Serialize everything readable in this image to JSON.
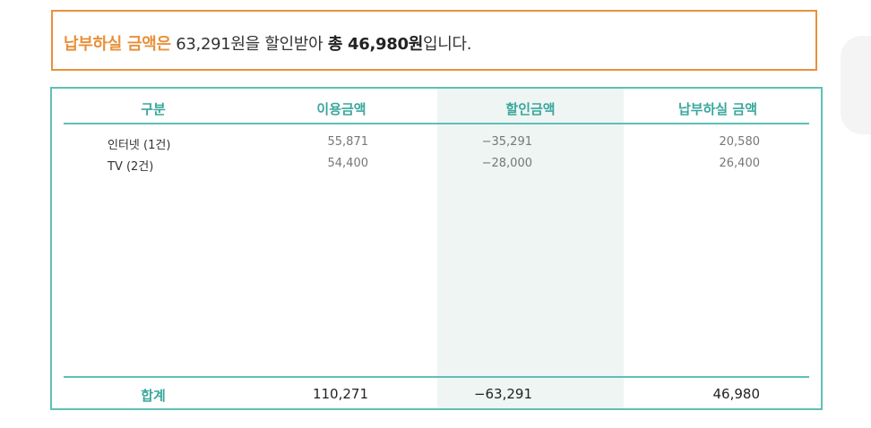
{
  "summary": {
    "lead": "납부하실 금액은",
    "middle": " 63,291원을 할인받아 ",
    "total_prefix": "총 ",
    "total_amount": "46,980원",
    "suffix": "입니다."
  },
  "table": {
    "headers": [
      "구분",
      "이용금액",
      "할인금액",
      "납부하실 금액"
    ],
    "rows": [
      {
        "category": "인터넷 (1건)",
        "usage": "55,871",
        "discount": "−35,291",
        "payment": "20,580"
      },
      {
        "category": "TV (2건)",
        "usage": "54,400",
        "discount": "−28,000",
        "payment": "26,400"
      }
    ],
    "total": {
      "label": "합계",
      "usage": "110,271",
      "discount": "−63,291",
      "payment": "46,980"
    }
  },
  "colors": {
    "accent_orange": "#e8913a",
    "accent_teal": "#5fbfb7",
    "header_teal": "#3aa79c",
    "shade": "#eef5f3"
  }
}
